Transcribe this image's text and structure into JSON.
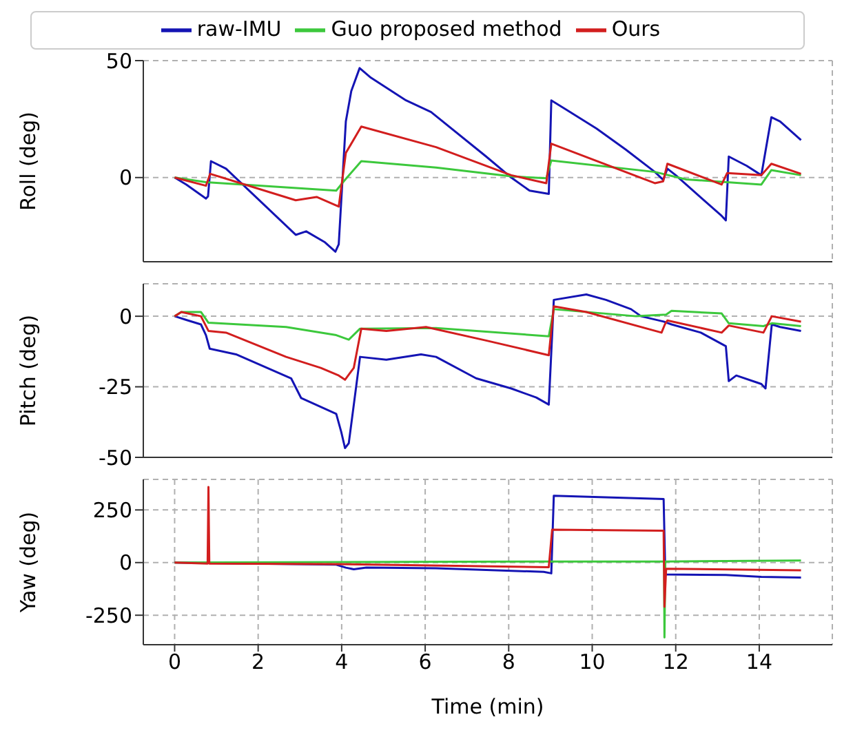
{
  "chart_data": [
    {
      "type": "line",
      "ylabel": "Roll (deg)",
      "xlim": [
        -0.75,
        15.75
      ],
      "xticks": [
        0,
        2,
        4,
        6,
        8,
        10,
        12,
        14
      ],
      "ylim": [
        -36,
        50
      ],
      "yticks": [
        0,
        50
      ],
      "grid": true,
      "legend": "top",
      "tick_labels": "y",
      "line_style": "solid",
      "series": [
        {
          "name": "raw-IMU",
          "color": "#1414b4",
          "x": [
            0,
            0.28,
            0.75,
            0.8,
            0.87,
            1.23,
            2.9,
            3.15,
            3.6,
            3.85,
            3.93,
            4.1,
            4.23,
            4.43,
            4.7,
            5.54,
            6.14,
            7.46,
            8.06,
            8.5,
            8.96,
            9.02,
            9.38,
            10.1,
            10.8,
            11.5,
            11.7,
            11.8,
            12.0,
            13.1,
            13.2,
            13.27,
            13.7,
            14.05,
            14.29,
            14.5,
            15.0
          ],
          "values": [
            0,
            -3,
            -9,
            -8,
            7,
            3.8,
            -24.5,
            -23,
            -27.7,
            -31.7,
            -28.5,
            24,
            37,
            46.8,
            42.7,
            33,
            28,
            9,
            0,
            -5.6,
            -7,
            33,
            29,
            21,
            12,
            2.4,
            -1,
            3.8,
            1,
            -16.4,
            -18.3,
            9,
            5,
            1,
            25.8,
            24,
            16
          ]
        },
        {
          "name": "Guo proposed method",
          "color": "#3cc83c",
          "x": [
            0,
            0.75,
            3.87,
            4.05,
            4.47,
            6.26,
            8.06,
            8.9,
            9.02,
            11.5,
            12.25,
            14.05,
            14.29,
            15
          ],
          "values": [
            0,
            -2,
            -5.6,
            -1.6,
            7,
            4.3,
            0.5,
            -0.3,
            7.3,
            2.4,
            -0.8,
            -3,
            3.2,
            1
          ]
        },
        {
          "name": "Ours",
          "color": "#d21e1e",
          "x": [
            0,
            0.75,
            0.85,
            2.9,
            3.4,
            3.93,
            4.1,
            4.47,
            6.26,
            8.06,
            8.9,
            9.02,
            11.5,
            11.7,
            11.8,
            13.1,
            13.23,
            14.05,
            14.29,
            15
          ],
          "values": [
            0,
            -3.5,
            1.6,
            -9.7,
            -8.3,
            -12.4,
            10.5,
            21.8,
            13,
            1,
            -2.4,
            14.5,
            -2.4,
            -1.6,
            5.9,
            -3,
            1.9,
            1,
            5.9,
            1.6
          ]
        }
      ]
    },
    {
      "type": "line",
      "ylabel": "Pitch (deg)",
      "xlim": [
        -0.75,
        15.75
      ],
      "xticks": [
        0,
        2,
        4,
        6,
        8,
        10,
        12,
        14
      ],
      "ylim": [
        -50,
        11.5
      ],
      "yticks": [
        -50,
        -25,
        0
      ],
      "grid": true,
      "tick_labels": "y",
      "line_style": "solid",
      "series": [
        {
          "color": "#1414b4",
          "x": [
            0,
            0.28,
            0.63,
            0.75,
            0.84,
            1.47,
            2.79,
            3.03,
            3.87,
            3.99,
            4.08,
            4.17,
            4.44,
            5.07,
            5.9,
            6.26,
            7.22,
            8.06,
            8.66,
            8.96,
            9.08,
            9.86,
            10.33,
            10.93,
            11.17,
            11.71,
            11.9,
            12.6,
            13.2,
            13.27,
            13.45,
            14.05,
            14.15,
            14.3,
            14.5,
            15
          ],
          "values": [
            0,
            -1.3,
            -2.9,
            -6.7,
            -11.5,
            -13.5,
            -22,
            -29,
            -34.6,
            -41,
            -46.7,
            -45,
            -14.4,
            -15.4,
            -13.5,
            -14.4,
            -22,
            -25.6,
            -28.8,
            -31.3,
            5.8,
            7.7,
            5.8,
            2.5,
            0,
            -1.9,
            -2.9,
            -5.8,
            -10.6,
            -23,
            -21,
            -24,
            -25.6,
            -2.9,
            -3.8,
            -5.2
          ]
        },
        {
          "color": "#3cc83c",
          "x": [
            0,
            0.16,
            0.63,
            0.81,
            2.67,
            3.87,
            4.17,
            4.44,
            6.26,
            8.96,
            9.08,
            11.05,
            11.77,
            11.9,
            13.1,
            13.27,
            14.1,
            14.3,
            15
          ],
          "values": [
            0,
            1.5,
            1.5,
            -2.3,
            -3.8,
            -6.7,
            -8.3,
            -4.4,
            -4.2,
            -7.1,
            2.5,
            0,
            0.6,
            1.9,
            1,
            -2.5,
            -3.5,
            -2.5,
            -3.5
          ]
        },
        {
          "color": "#d21e1e",
          "x": [
            0,
            0.16,
            0.63,
            0.81,
            1.23,
            2.67,
            3.5,
            3.93,
            4.08,
            4.29,
            4.47,
            5.07,
            6.02,
            7.46,
            8.96,
            9.08,
            9.86,
            11.66,
            11.74,
            11.8,
            13.1,
            13.27,
            14.1,
            14.3,
            15
          ],
          "values": [
            0,
            1.5,
            0,
            -5.2,
            -5.8,
            -14.4,
            -18.3,
            -21,
            -22.5,
            -18.3,
            -4.4,
            -5.2,
            -3.8,
            -8.6,
            -13.8,
            3.5,
            1.5,
            -5.8,
            -2.9,
            -1.5,
            -5.8,
            -3.3,
            -5.8,
            0,
            -1.9
          ]
        }
      ]
    },
    {
      "type": "line",
      "xlabel": "Time (min)",
      "ylabel": "Yaw (deg)",
      "xlim": [
        -0.75,
        15.75
      ],
      "xticks": [
        0,
        2,
        4,
        6,
        8,
        10,
        12,
        14
      ],
      "ylim": [
        -390,
        395
      ],
      "yticks": [
        -250,
        0,
        250
      ],
      "grid": true,
      "line_style": "solid",
      "series": [
        {
          "color": "#1414b4",
          "x": [
            0,
            3.87,
            4.1,
            4.29,
            4.59,
            6.26,
            8.84,
            9.02,
            9.08,
            11.71,
            11.75,
            13.2,
            14.05,
            15
          ],
          "values": [
            0,
            -10,
            -24,
            -32,
            -24,
            -27,
            -44,
            -51,
            317,
            302,
            -56,
            -59,
            -68,
            -71
          ]
        },
        {
          "color": "#3cc83c",
          "x": [
            0,
            9.02,
            11.72,
            11.73,
            11.75,
            15
          ],
          "values": [
            0,
            5,
            5,
            -356,
            5,
            10
          ]
        },
        {
          "color": "#d21e1e",
          "x": [
            0,
            0.79,
            0.81,
            0.83,
            3.87,
            8.96,
            9.04,
            11.71,
            11.73,
            11.77,
            15
          ],
          "values": [
            0,
            -5,
            359,
            -5,
            -7,
            -22,
            156,
            151,
            -210,
            -29,
            -37
          ]
        }
      ]
    }
  ]
}
